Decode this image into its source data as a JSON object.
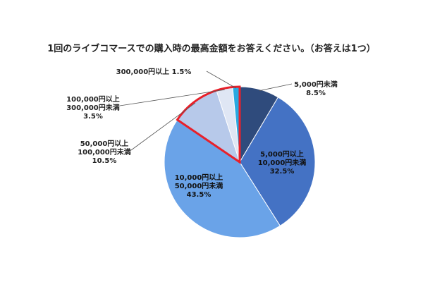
{
  "chart_data": {
    "type": "pie",
    "title": "1回のライブコマースでの購入時の最高金額をお答えください。（お答えは1つ）",
    "slices": [
      {
        "label_lines": [
          "5,000円未満"
        ],
        "value": 8.5,
        "value_label": "8.5%",
        "color": "#2f4b7c"
      },
      {
        "label_lines": [
          "5,000円以上",
          "10,000円未満"
        ],
        "value": 32.5,
        "value_label": "32.5%",
        "color": "#4472c4"
      },
      {
        "label_lines": [
          "10,000円以上",
          "50,000円未満"
        ],
        "value": 43.5,
        "value_label": "43.5%",
        "color": "#6aa3e8"
      },
      {
        "label_lines": [
          "50,000円以上",
          "100,000円未満"
        ],
        "value": 10.5,
        "value_label": "10.5%",
        "color": "#b7c9ea",
        "highlight": true
      },
      {
        "label_lines": [
          "100,000円以上",
          "300,000円未満"
        ],
        "value": 3.5,
        "value_label": "3.5%",
        "color": "#dfe6f4",
        "highlight": true
      },
      {
        "label_lines": [
          "300,000円以上"
        ],
        "value": 1.5,
        "value_label": "1.5%",
        "color": "#29a9e1",
        "highlight": true
      }
    ],
    "highlight_color": "#e8202a",
    "start": "12 o'clock",
    "direction": "clockwise"
  }
}
